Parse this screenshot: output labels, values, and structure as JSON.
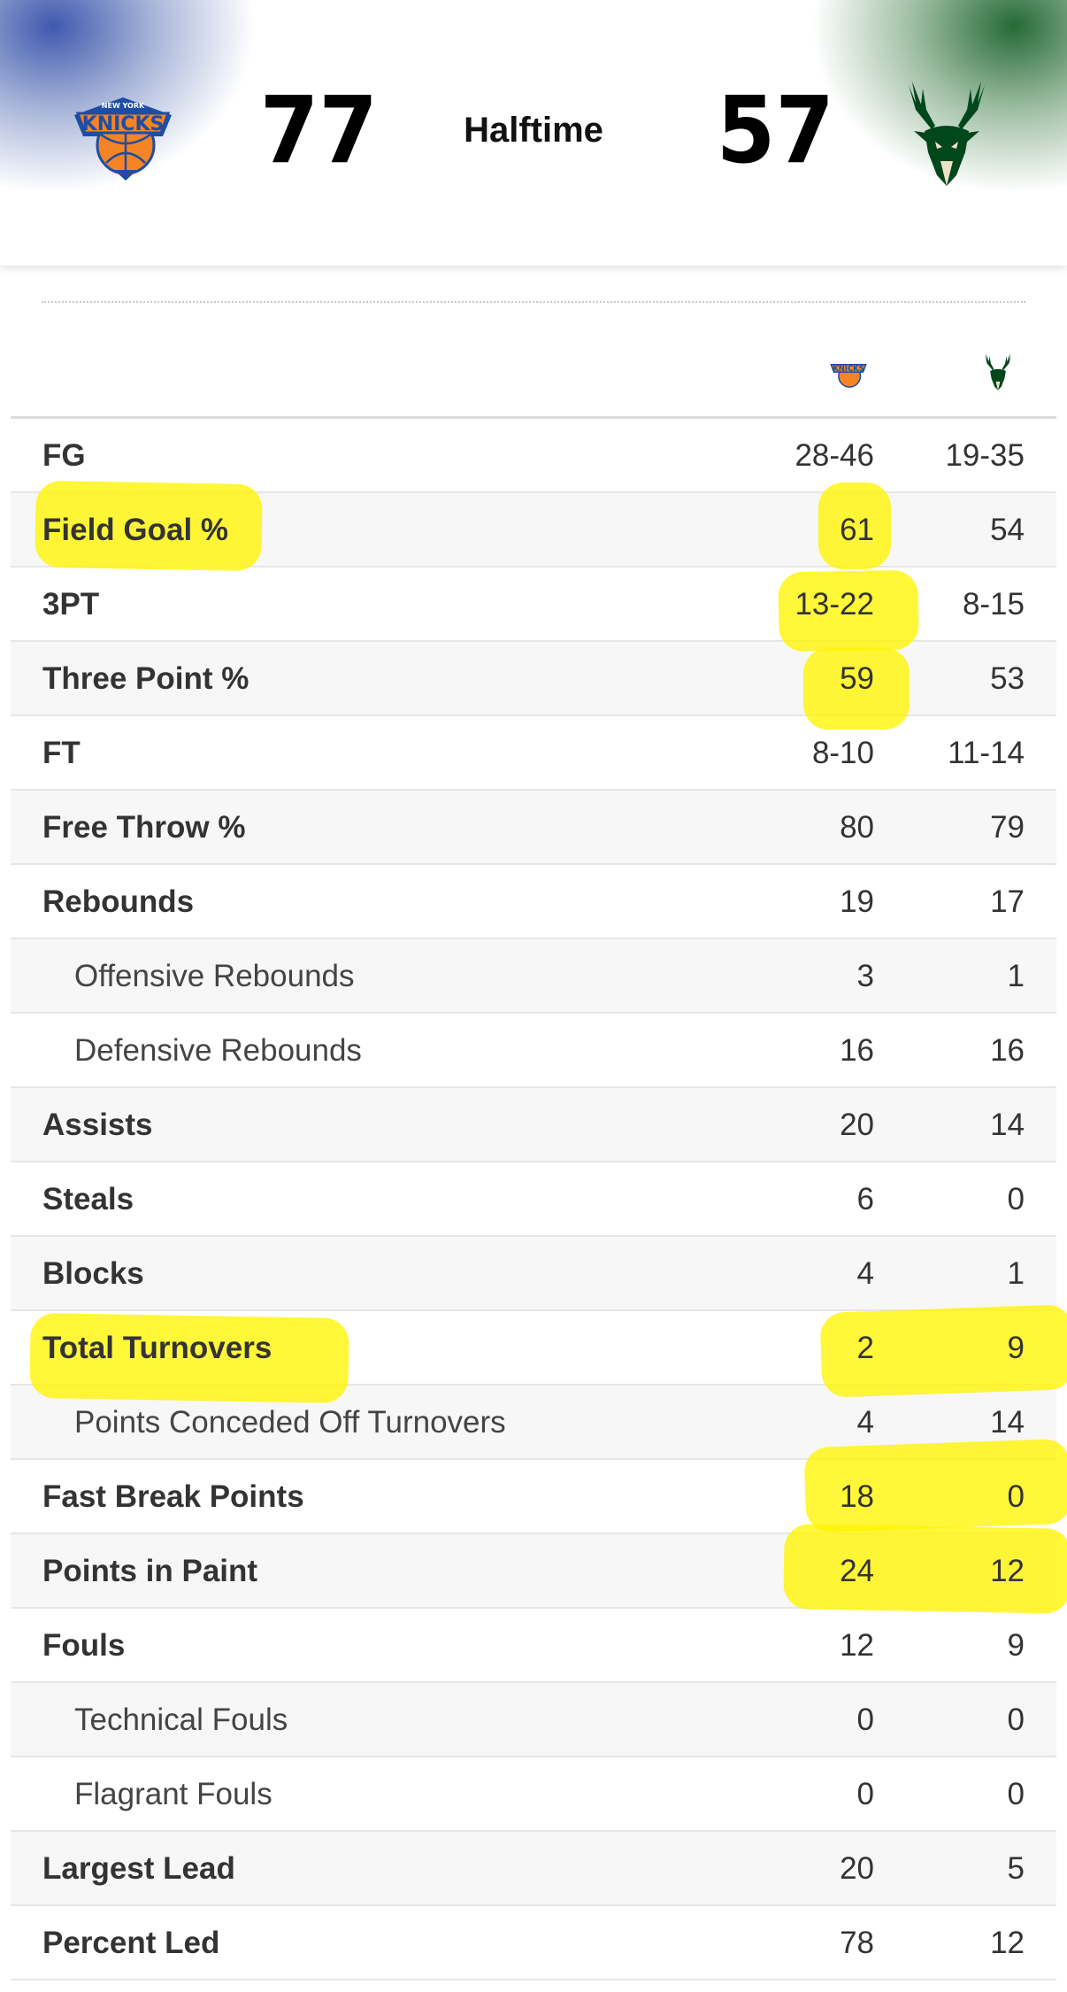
{
  "scoreboard": {
    "home_team": {
      "logo_icon": "knicks-logo-icon",
      "score": "77",
      "glow_color": "#1e3ca0"
    },
    "away_team": {
      "logo_icon": "bucks-logo-icon",
      "score": "57",
      "glow_color": "#00501e"
    },
    "status": "Halftime"
  },
  "table": {
    "rows": [
      {
        "label": "FG",
        "home": "28-46",
        "away": "19-35",
        "sub": false
      },
      {
        "label": "Field Goal %",
        "home": "61",
        "away": "54",
        "sub": false
      },
      {
        "label": "3PT",
        "home": "13-22",
        "away": "8-15",
        "sub": false
      },
      {
        "label": "Three Point %",
        "home": "59",
        "away": "53",
        "sub": false
      },
      {
        "label": "FT",
        "home": "8-10",
        "away": "11-14",
        "sub": false
      },
      {
        "label": "Free Throw %",
        "home": "80",
        "away": "79",
        "sub": false
      },
      {
        "label": "Rebounds",
        "home": "19",
        "away": "17",
        "sub": false
      },
      {
        "label": "Offensive Rebounds",
        "home": "3",
        "away": "1",
        "sub": true
      },
      {
        "label": "Defensive Rebounds",
        "home": "16",
        "away": "16",
        "sub": true
      },
      {
        "label": "Assists",
        "home": "20",
        "away": "14",
        "sub": false
      },
      {
        "label": "Steals",
        "home": "6",
        "away": "0",
        "sub": false
      },
      {
        "label": "Blocks",
        "home": "4",
        "away": "1",
        "sub": false
      },
      {
        "label": "Total Turnovers",
        "home": "2",
        "away": "9",
        "sub": false
      },
      {
        "label": "Points Conceded Off Turnovers",
        "home": "4",
        "away": "14",
        "sub": true
      },
      {
        "label": "Fast Break Points",
        "home": "18",
        "away": "0",
        "sub": false
      },
      {
        "label": "Points in Paint",
        "home": "24",
        "away": "12",
        "sub": false
      },
      {
        "label": "Fouls",
        "home": "12",
        "away": "9",
        "sub": false
      },
      {
        "label": "Technical Fouls",
        "home": "0",
        "away": "0",
        "sub": true
      },
      {
        "label": "Flagrant Fouls",
        "home": "0",
        "away": "0",
        "sub": true
      },
      {
        "label": "Largest Lead",
        "home": "20",
        "away": "5",
        "sub": false
      },
      {
        "label": "Percent Led",
        "home": "78",
        "away": "12",
        "sub": false
      }
    ]
  },
  "highlight_color": "#fff500"
}
